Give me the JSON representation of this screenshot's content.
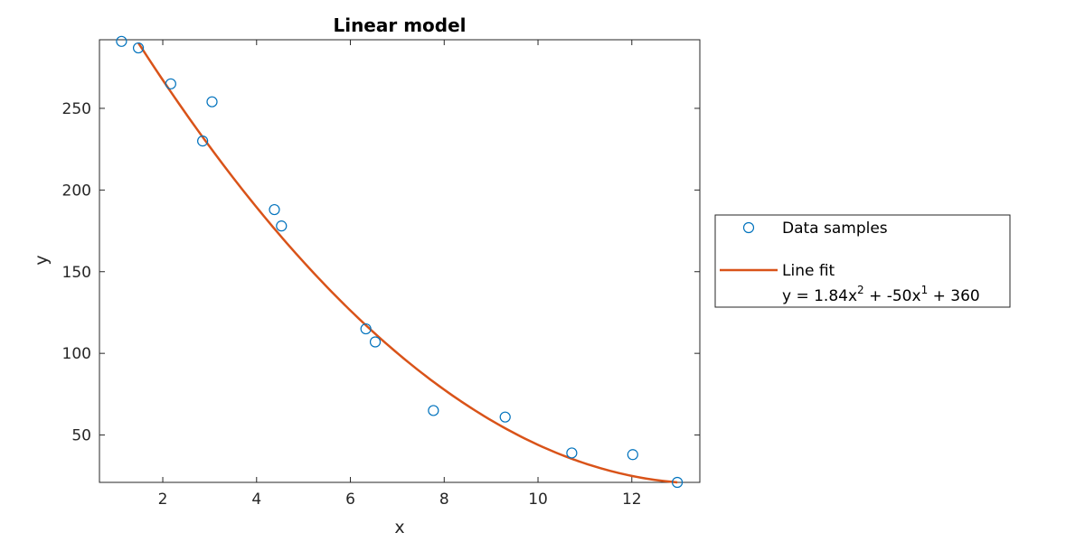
{
  "chart_data": {
    "type": "scatter",
    "title": "Linear model",
    "xlabel": "x",
    "ylabel": "y",
    "xlim": [
      0.65,
      13.45
    ],
    "ylim": [
      21,
      292
    ],
    "xticks": [
      2,
      4,
      6,
      8,
      10,
      12
    ],
    "yticks": [
      50,
      100,
      150,
      200,
      250
    ],
    "grid": false,
    "legend_position": "right, outside",
    "colors": {
      "samples": "#0072bd",
      "fit": "#d95319",
      "axes": "#262626"
    },
    "series": [
      {
        "name": "Data samples",
        "kind": "scatter",
        "marker": "circle-open",
        "points": [
          [
            1.12,
            291
          ],
          [
            1.48,
            287
          ],
          [
            2.17,
            265
          ],
          [
            2.85,
            230
          ],
          [
            3.05,
            254
          ],
          [
            4.38,
            188
          ],
          [
            4.53,
            178
          ],
          [
            6.33,
            115
          ],
          [
            6.53,
            107
          ],
          [
            7.77,
            65
          ],
          [
            9.3,
            61
          ],
          [
            10.72,
            39
          ],
          [
            12.02,
            38
          ],
          [
            12.97,
            21
          ]
        ]
      },
      {
        "name": "Line fit",
        "kind": "line",
        "equation": {
          "a2": 1.84,
          "a1": -50,
          "a0": 360
        },
        "domain": [
          1.48,
          12.97
        ]
      }
    ]
  },
  "legend": {
    "samples_label": "Data samples",
    "fit_label": "Line fit",
    "equation_prefix": "y = 1.84x",
    "equation_exp2": "2",
    "equation_mid": " + -50x",
    "equation_exp1": "1",
    "equation_suffix": " + 360"
  }
}
